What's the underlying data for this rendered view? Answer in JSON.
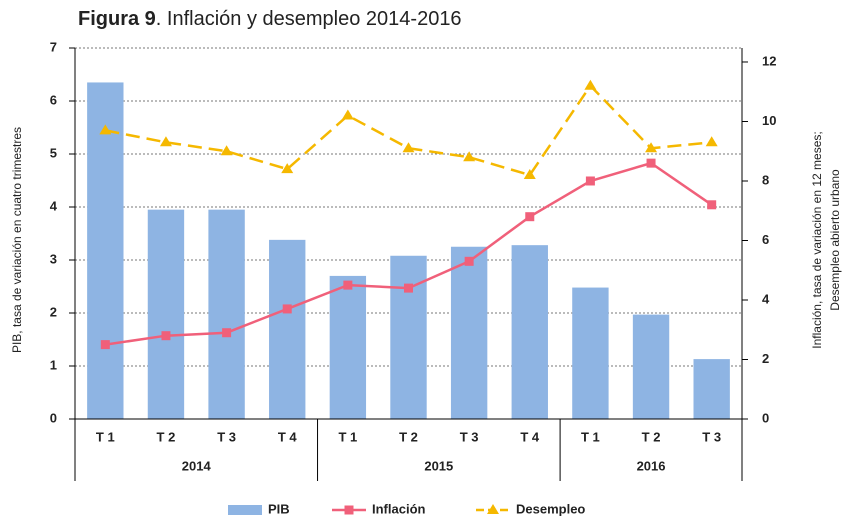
{
  "chart_data": {
    "type": "bar_line",
    "title": [
      "Figura 9",
      ". Inflación y desempleo 2014-2016"
    ],
    "ylabel": "PIB, tasa de variación en cuatro trimestres",
    "y2label": [
      "Inflación, tasa de variación en 12 meses;",
      "Desempleo abierto urbano"
    ],
    "groups": [
      {
        "name": "2014",
        "categories": [
          "T 1",
          "T 2",
          "T 3",
          "T 4"
        ]
      },
      {
        "name": "2015",
        "categories": [
          "T 1",
          "T 2",
          "T 3",
          "T 4"
        ]
      },
      {
        "name": "2016",
        "categories": [
          "T 1",
          "T 2",
          "T 3"
        ]
      }
    ],
    "series": [
      {
        "name": "PIB",
        "type": "bar",
        "color": "#8eb4e3",
        "values": [
          6.35,
          3.95,
          3.95,
          3.38,
          2.7,
          3.08,
          3.25,
          3.28,
          2.48,
          1.97,
          1.13
        ]
      },
      {
        "name": "Inflación",
        "type": "line",
        "axis": "y2",
        "color": "#f0607a",
        "values": [
          2.5,
          2.8,
          2.9,
          3.7,
          4.5,
          4.4,
          5.3,
          6.8,
          8.0,
          8.6,
          7.2
        ]
      },
      {
        "name": "Desempleo",
        "type": "line",
        "axis": "y2",
        "dashed": true,
        "color": "#f5b800",
        "values": [
          9.7,
          9.3,
          9.0,
          8.4,
          10.2,
          9.1,
          8.8,
          8.2,
          11.2,
          9.1,
          9.3
        ]
      }
    ],
    "ylim": [
      0,
      7
    ],
    "yticks": [
      0,
      1,
      2,
      3,
      4,
      5,
      6,
      7
    ],
    "y2lim": [
      0,
      12.47
    ],
    "y2ticks": [
      0,
      2,
      4,
      6,
      8,
      10,
      12
    ],
    "grid": true
  }
}
